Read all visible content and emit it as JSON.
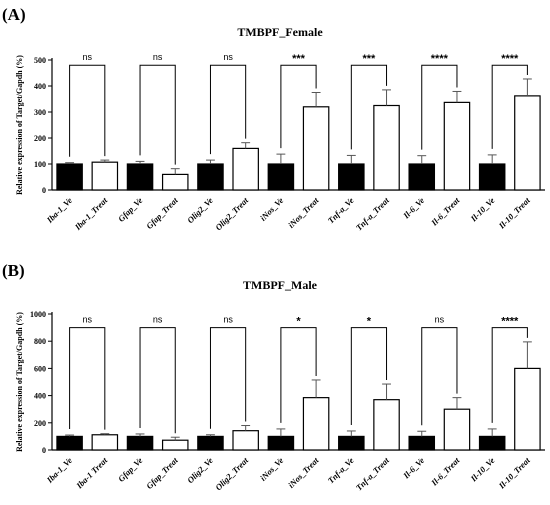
{
  "chart_data": [
    {
      "panel": "(A)",
      "type": "bar",
      "title": "TMBPF_Female",
      "ylabel": "Relative expression of Target/Gapdh (%)",
      "ylim": [
        0,
        500
      ],
      "yticks": [
        0,
        100,
        200,
        300,
        400,
        500
      ],
      "categories": [
        "Iba-1_Ve",
        "Iba-1_Treat",
        "Gfap_Ve",
        "Gfap_Treat",
        "Olig2_Ve",
        "Olig2_Treat",
        "iNos_Ve",
        "iNos_Treat",
        "Tnf-a_Ve",
        "Tnf-a_Treat",
        "Il-6_Ve",
        "Il-6_Treat",
        "Il-10_Ve",
        "Il-10_Treat"
      ],
      "values": [
        100,
        107,
        100,
        60,
        100,
        160,
        100,
        320,
        100,
        325,
        100,
        337,
        100,
        362
      ],
      "errors": [
        5,
        8,
        10,
        22,
        15,
        22,
        38,
        55,
        33,
        60,
        32,
        42,
        35,
        65
      ],
      "fills": [
        "#000000",
        "#ffffff",
        "#000000",
        "#ffffff",
        "#000000",
        "#ffffff",
        "#000000",
        "#ffffff",
        "#000000",
        "#ffffff",
        "#000000",
        "#ffffff",
        "#000000",
        "#ffffff"
      ],
      "significance": [
        "ns",
        "ns",
        "ns",
        "***",
        "***",
        "****",
        "****"
      ],
      "brackets": [
        {
          "a": 0,
          "b": 1,
          "top": 480
        },
        {
          "a": 2,
          "b": 3,
          "top": 480
        },
        {
          "a": 4,
          "b": 5,
          "top": 480
        },
        {
          "a": 6,
          "b": 7,
          "top": 480
        },
        {
          "a": 8,
          "b": 9,
          "top": 480
        },
        {
          "a": 10,
          "b": 11,
          "top": 480
        },
        {
          "a": 12,
          "b": 13,
          "top": 480
        }
      ]
    },
    {
      "panel": "(B)",
      "type": "bar",
      "title": "TMBPF_Male",
      "ylabel": "Relative expression of Target/Gapdh (%)",
      "ylim": [
        0,
        1000
      ],
      "yticks": [
        0,
        200,
        400,
        600,
        800,
        1000
      ],
      "categories": [
        "Iba-1_Ve",
        "Iba-1 Treat",
        "Gfap_Ve",
        "Gfap_Treat",
        "Olig2_Ve",
        "Olig2_Treat",
        "iNos_Ve",
        "iNos_Treat",
        "Tnf-a_Ve",
        "Tnf-a_Treat",
        "Il-6_Ve",
        "Il-6_Treat",
        "Il-10_Ve",
        "Il-10_Treat"
      ],
      "values": [
        100,
        112,
        100,
        72,
        100,
        142,
        100,
        385,
        100,
        370,
        100,
        300,
        100,
        600
      ],
      "errors": [
        10,
        8,
        18,
        22,
        12,
        38,
        55,
        130,
        40,
        115,
        38,
        85,
        55,
        195
      ],
      "fills": [
        "#000000",
        "#ffffff",
        "#000000",
        "#ffffff",
        "#000000",
        "#ffffff",
        "#000000",
        "#ffffff",
        "#000000",
        "#ffffff",
        "#000000",
        "#ffffff",
        "#000000",
        "#ffffff"
      ],
      "significance": [
        "ns",
        "ns",
        "ns",
        "*",
        "*",
        "ns",
        "****"
      ],
      "brackets": [
        {
          "a": 0,
          "b": 1,
          "top": 900
        },
        {
          "a": 2,
          "b": 3,
          "top": 900
        },
        {
          "a": 4,
          "b": 5,
          "top": 900
        },
        {
          "a": 6,
          "b": 7,
          "top": 900
        },
        {
          "a": 8,
          "b": 9,
          "top": 900
        },
        {
          "a": 10,
          "b": 11,
          "top": 900
        },
        {
          "a": 12,
          "b": 13,
          "top": 900
        }
      ]
    }
  ]
}
